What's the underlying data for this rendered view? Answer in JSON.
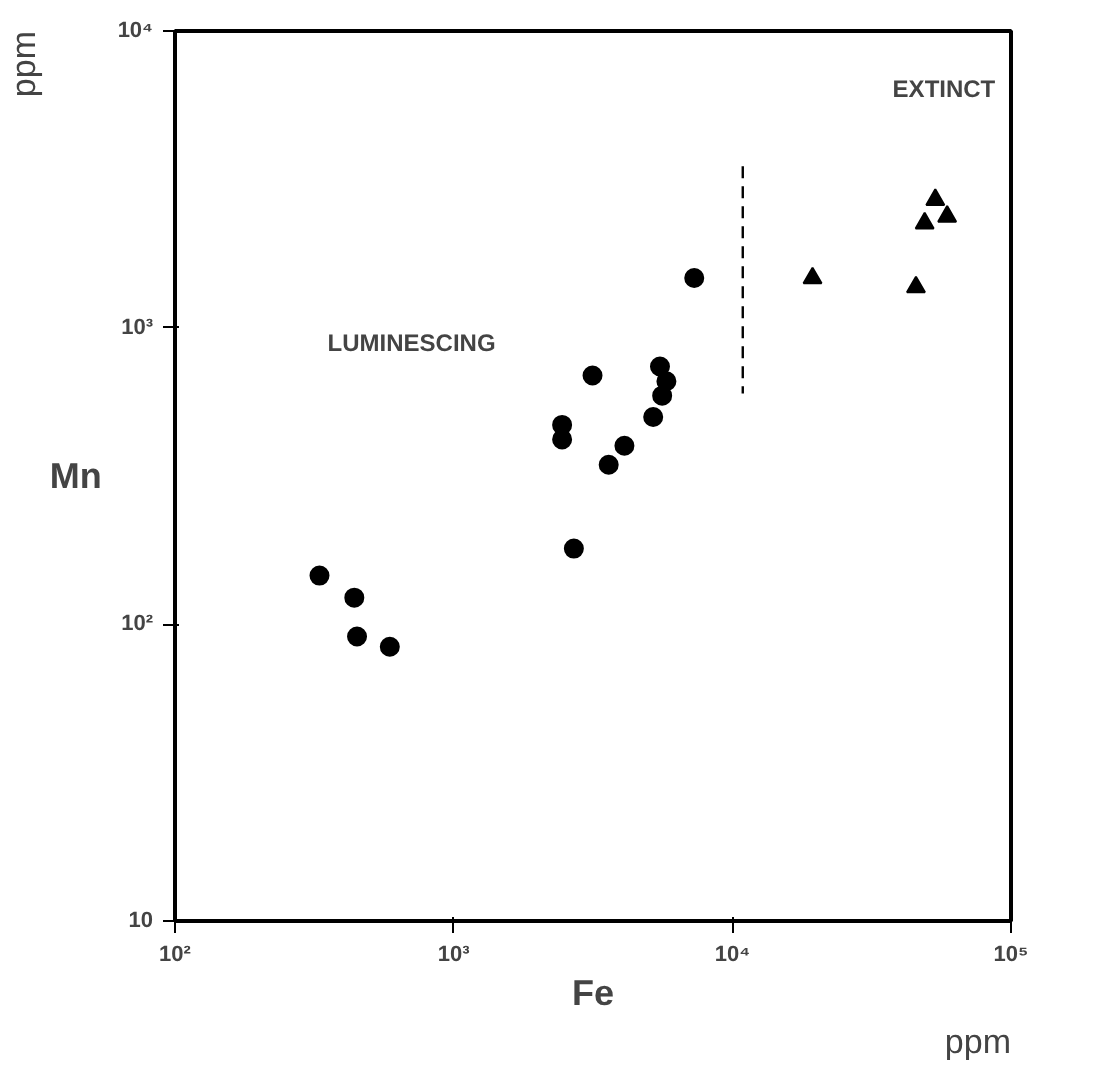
{
  "chart_data": {
    "type": "scatter",
    "xlabel": "Fe",
    "ylabel": "Mn",
    "log": "xy",
    "grid": false,
    "xlim": [
      100,
      100000
    ],
    "ylim": [
      10,
      10000
    ],
    "xticks": [
      {
        "value": 100,
        "label": "10²"
      },
      {
        "value": 1000,
        "label": "10³"
      },
      {
        "value": 10000,
        "label": "10⁴"
      },
      {
        "value": 100000,
        "label": "10⁵"
      }
    ],
    "yticks": [
      10,
      {
        "value": 100,
        "label": "10²"
      },
      {
        "value": 1000,
        "label": "10³"
      },
      {
        "value": 10000,
        "label": "10⁴"
      }
    ],
    "series": [
      {
        "color": "#000000",
        "marker": "circle",
        "x": [
          7300,
          3150,
          5500,
          5800,
          5600,
          5200,
          2450,
          2450,
          4100,
          3600,
          2700,
          330,
          440,
          450,
          590
        ],
        "values": [
          1470,
          690,
          740,
          660,
          590,
          500,
          470,
          420,
          400,
          345,
          180,
          146,
          123,
          91,
          84
        ]
      },
      {
        "color": "#000000",
        "marker": "triangle",
        "x": [
          19400,
          45600,
          49000,
          53500,
          59000
        ],
        "values": [
          1470,
          1370,
          2250,
          2700,
          2370
        ]
      },
      {
        "type": "line",
        "color": "#000000",
        "line_style": "dashed",
        "x": [
          10900,
          10900
        ],
        "values": [
          3500,
          600
        ]
      }
    ],
    "annotations": [
      "LUMINESCING",
      "EXTINCT",
      "ppm",
      "ppm"
    ]
  }
}
